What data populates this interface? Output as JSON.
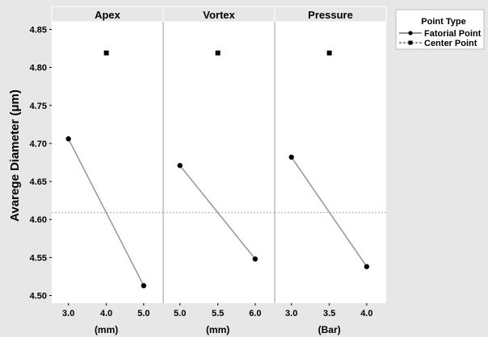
{
  "chart_data": {
    "type": "line",
    "ylabel": "Avarege Diameter (μm)",
    "ylim": [
      4.49,
      4.86
    ],
    "yticks": [
      4.5,
      4.55,
      4.6,
      4.65,
      4.7,
      4.75,
      4.8,
      4.85
    ],
    "ytick_labels": [
      "4.50",
      "4.55",
      "4.60",
      "4.65",
      "4.70",
      "4.75",
      "4.80",
      "4.85"
    ],
    "reference_line": 4.609,
    "grid": false,
    "legend_position": "top-right",
    "legend": {
      "title": "Point Type",
      "items": [
        {
          "label": "Fatorial Point",
          "style": "solid",
          "marker": "circle"
        },
        {
          "label": "Center Point",
          "style": "dashed",
          "marker": "square"
        }
      ]
    },
    "panels": [
      {
        "title": "Apex",
        "unit": "(mm)",
        "tick_labels": [
          "3.0",
          "4.0",
          "5.0"
        ],
        "factorial": [
          {
            "x": "3.0",
            "y": 4.706
          },
          {
            "x": "5.0",
            "y": 4.513
          }
        ],
        "center": {
          "x": "4.0",
          "y": 4.819
        }
      },
      {
        "title": "Vortex",
        "unit": "(mm)",
        "tick_labels": [
          "5.0",
          "5.5",
          "6.0"
        ],
        "factorial": [
          {
            "x": "5.0",
            "y": 4.671
          },
          {
            "x": "6.0",
            "y": 4.548
          }
        ],
        "center": {
          "x": "5.5",
          "y": 4.819
        }
      },
      {
        "title": "Pressure",
        "unit": "(Bar)",
        "tick_labels": [
          "3.0",
          "3.5",
          "4.0"
        ],
        "factorial": [
          {
            "x": "3.0",
            "y": 4.682
          },
          {
            "x": "4.0",
            "y": 4.538
          }
        ],
        "center": {
          "x": "3.5",
          "y": 4.819
        }
      }
    ]
  },
  "colors": {
    "page_background": "#e7e7e7",
    "panel_background": "#ffffff",
    "strip_background": "#e7e7e7",
    "line": "#9a9a9a",
    "marker": "#000000",
    "reference_line": "#a8a8a8"
  }
}
